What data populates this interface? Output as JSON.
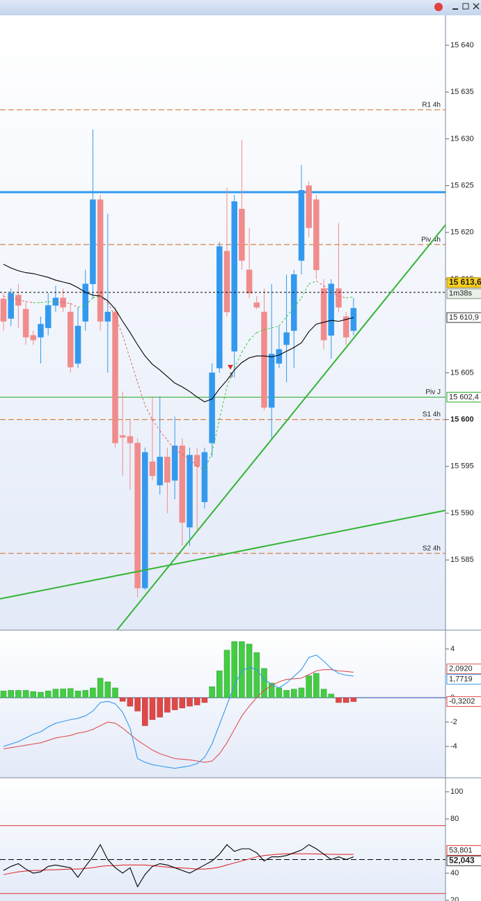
{
  "chart_data": [
    {
      "type": "candlestick",
      "open": [
        15612.9,
        15610.8,
        15613.3,
        15611.8,
        15609.0,
        15608.8,
        15609.8,
        15612.2,
        15613.0,
        15611.5,
        15606.0,
        15610.5,
        15614.5,
        15623.5,
        15610.5,
        15611.5,
        15598.3,
        15598.2,
        15597.5,
        15582.0,
        15595.5,
        15593.0,
        15596.0,
        15593.5,
        15597.2,
        15588.5,
        15596.2,
        15591.2,
        15597.5,
        15605.5,
        15618.0,
        15607.3,
        15622.5,
        15616.0,
        15612.5,
        15611.5,
        15601.3,
        15606.0,
        15608.0,
        15609.5,
        15617.0,
        15625.0,
        15623.5,
        15614.0,
        15609.0,
        15614.0,
        15611.0,
        15609.5
      ],
      "high": [
        15613.5,
        15614.0,
        15614.5,
        15612.5,
        15609.5,
        15611.0,
        15613.5,
        15614.3,
        15614.0,
        15612.5,
        15612.0,
        15616.0,
        15631.0,
        15624.0,
        15622.0,
        15612.0,
        15603.0,
        15600.0,
        15598.0,
        15597.0,
        15602.5,
        15602.5,
        15597.0,
        15600.3,
        15598.0,
        15597.0,
        15597.0,
        15597.0,
        15606.0,
        15619.0,
        15624.8,
        15624.0,
        15629.9,
        15620.5,
        15613.2,
        15614.0,
        15614.5,
        15610.0,
        15615.5,
        15616.0,
        15627.2,
        15625.5,
        15624.0,
        15615.0,
        15615.0,
        15621.0,
        15611.5,
        15613.0
      ],
      "low": [
        15609.5,
        15610.0,
        15609.8,
        15608.0,
        15608.0,
        15606.0,
        15609.0,
        15611.5,
        15611.5,
        15605.0,
        15605.5,
        15609.5,
        15613.0,
        15609.5,
        15605.0,
        15597.0,
        15594.0,
        15592.5,
        15581.0,
        15581.8,
        15593.5,
        15592.0,
        15590.0,
        15591.5,
        15586.5,
        15586.5,
        15588.0,
        15590.5,
        15596.0,
        15605.0,
        15611.0,
        15604.5,
        15616.0,
        15613.0,
        15611.8,
        15601.0,
        15598.0,
        15605.5,
        15604.0,
        15605.5,
        15615.5,
        15619.5,
        15615.0,
        15607.5,
        15606.5,
        15611.5,
        15608.0,
        15609.0
      ],
      "close": [
        15610.5,
        15613.5,
        15612.2,
        15608.8,
        15608.5,
        15610.2,
        15612.2,
        15613.0,
        15612.0,
        15605.6,
        15610.0,
        15614.5,
        15623.5,
        15610.5,
        15611.5,
        15597.5,
        15598.1,
        15597.5,
        15582.0,
        15596.5,
        15594.0,
        15596.0,
        15593.3,
        15597.2,
        15589.0,
        15596.2,
        15595.0,
        15596.5,
        15605.0,
        15618.5,
        15611.5,
        15623.3,
        15617.0,
        15613.5,
        15612.0,
        15601.3,
        15607.0,
        15607.5,
        15609.3,
        15615.5,
        15624.5,
        15620.5,
        15616.0,
        15608.5,
        15614.5,
        15612.0,
        15608.8,
        15611.9
      ],
      "up_color": "#3399ee",
      "down_color": "#f08c8c",
      "lines": [
        {
          "color": "#000000",
          "last_label": "15 610,9",
          "values": [
            15616.6,
            15616.2,
            15615.9,
            15615.7,
            15615.6,
            15615.4,
            15615.2,
            15614.9,
            15614.7,
            15614.5,
            15614.1,
            15613.6,
            15613.3,
            15613.2,
            15612.7,
            15611.8,
            15610.5,
            15609.3,
            15608.0,
            15606.8,
            15605.9,
            15605.3,
            15604.6,
            15603.9,
            15603.5,
            15603.0,
            15602.4,
            15601.9,
            15602.2,
            15603.3,
            15604.2,
            15605.3,
            15606.1,
            15606.6,
            15606.8,
            15606.8,
            15606.7,
            15606.9,
            15607.3,
            15607.7,
            15608.2,
            15609.4,
            15610.2,
            15610.4,
            15610.6,
            15610.5,
            15610.7,
            15610.9
          ]
        },
        {
          "color": "#33cc33",
          "down_color": "#e06060",
          "dashed": true,
          "values": [
            15613.2,
            15613.0,
            15612.8,
            15612.6,
            15612.5,
            15612.5,
            15612.6,
            15612.6,
            15612.5,
            15612.4,
            15612.0,
            15612.2,
            15613.0,
            15613.2,
            15612.5,
            15611.0,
            15609.0,
            15606.5,
            15604.0,
            15601.5,
            15600.0,
            15598.8,
            15597.8,
            15596.8,
            15596.3,
            15595.8,
            15595.0,
            15594.6,
            15596.5,
            15600.0,
            15603.5,
            15605.5,
            15607.2,
            15608.5,
            15609.3,
            15609.6,
            15609.8,
            15610.0,
            15611.0,
            15612.0,
            15613.0,
            15614.5,
            15614.8,
            15614.3,
            15613.6,
            15613.2,
            15613.0,
            15613.1
          ]
        }
      ],
      "levels": [
        {
          "label": "R1 4h",
          "value": 15633.1,
          "color": "#d2691e",
          "dashed": true
        },
        {
          "value": 15624.3,
          "color": "#3399ee",
          "width": 3
        },
        {
          "label": "Piv 4h",
          "value": 15618.7,
          "color": "#d2691e",
          "dashed": true
        },
        {
          "label": "Piv J",
          "value": 15602.4,
          "value_label": "15 602,4",
          "color": "#22aa22"
        },
        {
          "label": "S1 4h",
          "value": 15600.0,
          "color": "#d2691e",
          "dashed": true
        },
        {
          "label": "S2 4h",
          "value": 15585.7,
          "color": "#d2691e",
          "dashed": true
        }
      ],
      "last_price": {
        "value": 15613.6,
        "label": "15 613,6",
        "timer": "1m38s"
      },
      "annotation": "3",
      "ylim": [
        15577.5,
        15643.2
      ],
      "yticks": [
        {
          "value": 15640,
          "label": "15 640"
        },
        {
          "value": 15635,
          "label": "15 635"
        },
        {
          "value": 15630,
          "label": "15 630"
        },
        {
          "value": 15625,
          "label": "15 625"
        },
        {
          "value": 15620,
          "label": "15 620"
        },
        {
          "value": 15615,
          "label": "15 615"
        },
        {
          "value": 15605,
          "label": "15 605"
        },
        {
          "value": 15600,
          "label": "15 600",
          "bold": true
        },
        {
          "value": 15595,
          "label": "15 595"
        },
        {
          "value": 15590,
          "label": "15 590"
        },
        {
          "value": 15585,
          "label": "15 585"
        }
      ]
    },
    {
      "type": "bar",
      "values": [
        0.55,
        0.6,
        0.6,
        0.6,
        0.5,
        0.45,
        0.55,
        0.7,
        0.72,
        0.75,
        0.55,
        0.6,
        0.8,
        1.6,
        1.3,
        0.8,
        -0.3,
        -0.7,
        -1.1,
        -2.3,
        -1.8,
        -1.6,
        -1.2,
        -1.0,
        -0.85,
        -0.7,
        -0.6,
        -0.4,
        0.9,
        2.2,
        3.9,
        4.6,
        4.6,
        4.4,
        3.7,
        2.4,
        1.2,
        0.8,
        0.6,
        0.7,
        0.8,
        1.8,
        2.0,
        0.7,
        0.3,
        -0.4,
        -0.4,
        -0.3202
      ],
      "last_label": "-0,3202",
      "up_color": "#44cc44",
      "down_color": "#e04848",
      "lines": [
        {
          "color": "#e05050",
          "last_label": "2,0920",
          "values": [
            -4.2,
            -4.1,
            -4.0,
            -3.9,
            -3.8,
            -3.7,
            -3.5,
            -3.3,
            -3.2,
            -3.1,
            -2.9,
            -2.8,
            -2.6,
            -2.3,
            -2.0,
            -2.1,
            -2.5,
            -3.0,
            -3.5,
            -3.9,
            -4.3,
            -4.6,
            -4.8,
            -5.0,
            -5.05,
            -5.1,
            -5.2,
            -5.3,
            -5.2,
            -4.6,
            -3.7,
            -2.6,
            -1.5,
            -0.7,
            0.0,
            0.6,
            1.0,
            1.3,
            1.5,
            1.55,
            1.6,
            1.9,
            2.2,
            2.3,
            2.3,
            2.2,
            2.15,
            2.092
          ]
        },
        {
          "color": "#3399ee",
          "last_label": "1,7719",
          "values": [
            -4.0,
            -3.8,
            -3.6,
            -3.3,
            -3.0,
            -2.8,
            -2.4,
            -2.1,
            -1.95,
            -1.8,
            -1.7,
            -1.5,
            -1.1,
            -0.4,
            -0.3,
            -0.5,
            -1.2,
            -2.5,
            -5.0,
            -5.3,
            -5.5,
            -5.6,
            -5.7,
            -5.8,
            -5.7,
            -5.6,
            -5.4,
            -4.9,
            -3.8,
            -2.2,
            -0.6,
            1.0,
            2.2,
            2.5,
            2.3,
            1.5,
            1.1,
            0.8,
            1.2,
            1.75,
            2.3,
            3.3,
            3.5,
            3.0,
            2.4,
            2.0,
            1.85,
            1.7719
          ]
        }
      ],
      "levels": [
        {
          "value": 0,
          "color": "#2244aa"
        }
      ],
      "ylim": [
        -6.57,
        5.54
      ],
      "yticks": [
        4,
        0,
        -2,
        -4
      ]
    },
    {
      "type": "line",
      "lines": [
        {
          "color": "#e03030",
          "last_label": "53,801",
          "values": [
            39,
            40,
            41,
            41.5,
            42,
            42,
            42.5,
            42.5,
            42.8,
            43,
            43,
            43.5,
            44,
            45,
            45.5,
            45.5,
            46,
            46,
            46,
            46,
            45.5,
            45,
            44.5,
            44,
            43.8,
            43.5,
            43,
            43,
            43.5,
            44.5,
            46,
            47.5,
            49,
            50.5,
            52,
            53,
            53.5,
            54,
            54.3,
            54.3,
            54.3,
            54.3,
            54.2,
            54,
            53.9,
            53.8,
            53.8,
            53.801
          ]
        },
        {
          "color": "#000000",
          "last_label": "52,043",
          "bold": true,
          "values": [
            42,
            45,
            47,
            43,
            40,
            41,
            45,
            46,
            45,
            44,
            37,
            45,
            52,
            61,
            50,
            44,
            40,
            44,
            30,
            39,
            45,
            47,
            46,
            44,
            42,
            40,
            43,
            46,
            49,
            54,
            61,
            56,
            58,
            58,
            55,
            49,
            52,
            52,
            53,
            55,
            57,
            61,
            58,
            54,
            50,
            52,
            50,
            52.043
          ]
        }
      ],
      "levels": [
        {
          "value": 75,
          "color": "#e03030"
        },
        {
          "value": 50,
          "color": "#000000",
          "dashed": true
        },
        {
          "value": 25,
          "color": "#e03030"
        }
      ],
      "ylim": [
        19.5,
        110.3
      ],
      "yticks": [
        100,
        80,
        40,
        20
      ]
    }
  ]
}
